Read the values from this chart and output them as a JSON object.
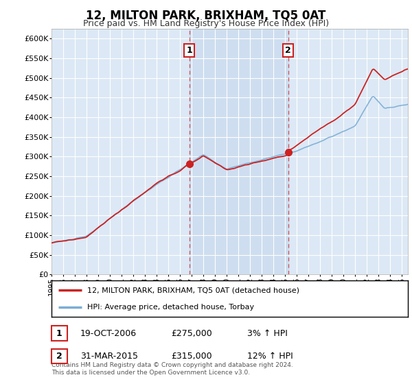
{
  "title": "12, MILTON PARK, BRIXHAM, TQ5 0AT",
  "subtitle": "Price paid vs. HM Land Registry's House Price Index (HPI)",
  "background_color": "#ffffff",
  "plot_bg_color": "#dce8f5",
  "grid_color": "#ffffff",
  "shade_color": "#c5d8ee",
  "ylim": [
    0,
    625000
  ],
  "yticks": [
    0,
    50000,
    100000,
    150000,
    200000,
    250000,
    300000,
    350000,
    400000,
    450000,
    500000,
    550000,
    600000
  ],
  "ytick_labels": [
    "£0",
    "£50K",
    "£100K",
    "£150K",
    "£200K",
    "£250K",
    "£300K",
    "£350K",
    "£400K",
    "£450K",
    "£500K",
    "£550K",
    "£600K"
  ],
  "hpi_color": "#7badd4",
  "price_color": "#cc2222",
  "sale1_date": 2006.8,
  "sale1_price": 275000,
  "sale1_label": "1",
  "sale2_date": 2015.25,
  "sale2_price": 315000,
  "sale2_label": "2",
  "legend_house_label": "12, MILTON PARK, BRIXHAM, TQ5 0AT (detached house)",
  "legend_hpi_label": "HPI: Average price, detached house, Torbay",
  "table_entries": [
    {
      "label": "1",
      "date": "19-OCT-2006",
      "price": "£275,000",
      "pct": "3% ↑ HPI"
    },
    {
      "label": "2",
      "date": "31-MAR-2015",
      "price": "£315,000",
      "pct": "12% ↑ HPI"
    }
  ],
  "footer": "Contains HM Land Registry data © Crown copyright and database right 2024.\nThis data is licensed under the Open Government Licence v3.0.",
  "xmin": 1995,
  "xmax": 2025.5
}
